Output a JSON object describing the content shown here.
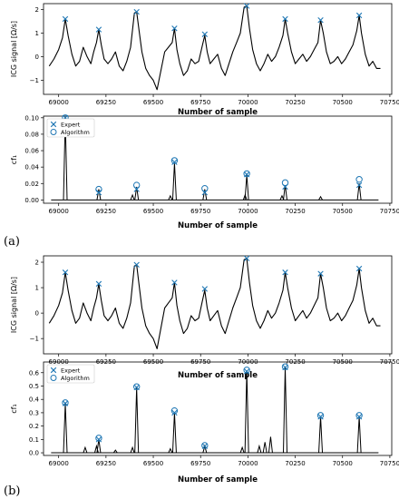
{
  "panel_labels": [
    "(a)",
    "(b)"
  ],
  "colors": {
    "signal": "#000000",
    "marker": "#1f77b4"
  },
  "chart_data": [
    {
      "id": "a_top",
      "type": "line",
      "title": "",
      "xlabel": "Number of sample",
      "ylabel": "ICG signal [Ω/s]",
      "xlim": [
        68920,
        70760
      ],
      "ylim": [
        -1.6,
        2.25
      ],
      "xticks": [
        69000,
        69250,
        69500,
        69750,
        70000,
        70250,
        70500,
        70750
      ],
      "xtick_labels": [
        "69000",
        "69250",
        "69500",
        "69750",
        "70000",
        "70250",
        "70500",
        "70750"
      ],
      "yticks": [
        -1,
        0,
        1,
        2
      ],
      "ytick_labels": [
        "−1",
        "0",
        "1",
        "2"
      ],
      "signal": {
        "x": [
          68950,
          68975,
          69000,
          69020,
          69035,
          69050,
          69070,
          69090,
          69110,
          69130,
          69150,
          69170,
          69185,
          69200,
          69212,
          69225,
          69240,
          69260,
          69280,
          69300,
          69320,
          69340,
          69360,
          69380,
          69400,
          69412,
          69425,
          69440,
          69460,
          69480,
          69500,
          69520,
          69540,
          69560,
          69580,
          69600,
          69612,
          69625,
          69640,
          69660,
          69680,
          69700,
          69720,
          69740,
          69760,
          69772,
          69785,
          69800,
          69820,
          69840,
          69860,
          69880,
          69900,
          69920,
          69940,
          69960,
          69980,
          69994,
          70008,
          70025,
          70045,
          70065,
          70085,
          70105,
          70125,
          70145,
          70165,
          70185,
          70197,
          70210,
          70230,
          70250,
          70270,
          70290,
          70310,
          70330,
          70350,
          70370,
          70384,
          70398,
          70415,
          70435,
          70455,
          70475,
          70495,
          70515,
          70535,
          70555,
          70575,
          70588,
          70600,
          70620,
          70640,
          70660,
          70680,
          70700
        ],
        "y": [
          -0.4,
          -0.1,
          0.3,
          0.8,
          1.6,
          0.9,
          0.1,
          -0.4,
          -0.2,
          0.4,
          0.0,
          -0.3,
          0.2,
          0.6,
          1.15,
          0.5,
          -0.1,
          -0.3,
          -0.1,
          0.2,
          -0.4,
          -0.6,
          -0.2,
          0.4,
          1.85,
          1.9,
          1.1,
          0.2,
          -0.5,
          -0.8,
          -1.0,
          -1.4,
          -0.6,
          0.2,
          0.4,
          0.6,
          1.2,
          0.3,
          -0.3,
          -0.8,
          -0.6,
          -0.1,
          -0.3,
          -0.2,
          0.5,
          0.9,
          0.2,
          -0.3,
          -0.1,
          0.1,
          -0.5,
          -0.8,
          -0.3,
          0.2,
          0.6,
          1.0,
          2.1,
          2.15,
          1.2,
          0.3,
          -0.3,
          -0.6,
          -0.3,
          0.1,
          -0.2,
          0.0,
          0.4,
          0.9,
          1.6,
          1.0,
          0.2,
          -0.3,
          -0.1,
          0.1,
          -0.2,
          0.0,
          0.3,
          0.6,
          1.55,
          1.0,
          0.2,
          -0.3,
          -0.2,
          0.0,
          -0.3,
          -0.1,
          0.2,
          0.5,
          1.1,
          1.75,
          1.0,
          0.1,
          -0.4,
          -0.2,
          -0.5,
          -0.5
        ]
      },
      "expert_markers": [
        {
          "x": 69035,
          "y": 1.6
        },
        {
          "x": 69212,
          "y": 1.15
        },
        {
          "x": 69412,
          "y": 1.9
        },
        {
          "x": 69612,
          "y": 1.2
        },
        {
          "x": 69772,
          "y": 0.95
        },
        {
          "x": 69994,
          "y": 2.15
        },
        {
          "x": 70197,
          "y": 1.6
        },
        {
          "x": 70384,
          "y": 1.55
        },
        {
          "x": 70588,
          "y": 1.75
        }
      ]
    },
    {
      "id": "a_bottom",
      "type": "line",
      "title": "",
      "xlabel": "Number of sample",
      "ylabel": "cf₁",
      "xlim": [
        68920,
        70760
      ],
      "ylim": [
        -0.004,
        0.102
      ],
      "xticks": [
        69000,
        69250,
        69500,
        69750,
        70000,
        70250,
        70500,
        70750
      ],
      "xtick_labels": [
        "69000",
        "69250",
        "69500",
        "69750",
        "70000",
        "70250",
        "70500",
        "70750"
      ],
      "yticks": [
        0.0,
        0.02,
        0.04,
        0.06,
        0.08,
        0.1
      ],
      "ytick_labels": [
        "0.00",
        "0.02",
        "0.04",
        "0.06",
        "0.08",
        "0.10"
      ],
      "legend": {
        "placement": "top-left",
        "entries": [
          "Expert",
          "Algorithm"
        ]
      },
      "spikes": [
        {
          "x": 69035,
          "h": 0.1
        },
        {
          "x": 69212,
          "h": 0.013
        },
        {
          "x": 69390,
          "h": 0.006
        },
        {
          "x": 69412,
          "h": 0.016
        },
        {
          "x": 69612,
          "h": 0.045
        },
        {
          "x": 69590,
          "h": 0.005
        },
        {
          "x": 69772,
          "h": 0.013
        },
        {
          "x": 69994,
          "h": 0.03
        },
        {
          "x": 69985,
          "h": 0.006
        },
        {
          "x": 70197,
          "h": 0.018
        },
        {
          "x": 70180,
          "h": 0.005
        },
        {
          "x": 70384,
          "h": 0.004
        },
        {
          "x": 70588,
          "h": 0.02
        }
      ],
      "expert_markers": [
        {
          "x": 69035,
          "y": 0.1
        },
        {
          "x": 69212,
          "y": 0.009
        },
        {
          "x": 69412,
          "y": 0.013
        },
        {
          "x": 69612,
          "y": 0.046
        },
        {
          "x": 69772,
          "y": 0.009
        },
        {
          "x": 69994,
          "y": 0.031
        },
        {
          "x": 70197,
          "y": 0.016
        },
        {
          "x": 70588,
          "y": 0.018
        }
      ],
      "algorithm_markers": [
        {
          "x": 69035,
          "y": 0.1
        },
        {
          "x": 69212,
          "y": 0.013
        },
        {
          "x": 69412,
          "y": 0.018
        },
        {
          "x": 69612,
          "y": 0.048
        },
        {
          "x": 69772,
          "y": 0.014
        },
        {
          "x": 69994,
          "y": 0.032
        },
        {
          "x": 70197,
          "y": 0.021
        },
        {
          "x": 70588,
          "y": 0.025
        }
      ]
    },
    {
      "id": "b_top",
      "type": "line",
      "title": "",
      "xlabel": "Number of sample",
      "ylabel": "ICG signal [Ω/s]",
      "xlim": [
        68920,
        70760
      ],
      "ylim": [
        -1.6,
        2.25
      ],
      "xticks": [
        69000,
        69250,
        69500,
        69750,
        70000,
        70250,
        70500,
        70750
      ],
      "xtick_labels": [
        "69000",
        "69250",
        "69500",
        "69750",
        "70000",
        "70250",
        "70500",
        "70750"
      ],
      "yticks": [
        -1,
        0,
        1,
        2
      ],
      "ytick_labels": [
        "−1",
        "0",
        "1",
        "2"
      ],
      "signal": {
        "x": [
          68950,
          68975,
          69000,
          69020,
          69035,
          69050,
          69070,
          69090,
          69110,
          69130,
          69150,
          69170,
          69185,
          69200,
          69212,
          69225,
          69240,
          69260,
          69280,
          69300,
          69320,
          69340,
          69360,
          69380,
          69400,
          69412,
          69425,
          69440,
          69460,
          69480,
          69500,
          69520,
          69540,
          69560,
          69580,
          69600,
          69612,
          69625,
          69640,
          69660,
          69680,
          69700,
          69720,
          69740,
          69760,
          69772,
          69785,
          69800,
          69820,
          69840,
          69860,
          69880,
          69900,
          69920,
          69940,
          69960,
          69980,
          69994,
          70008,
          70025,
          70045,
          70065,
          70085,
          70105,
          70125,
          70145,
          70165,
          70185,
          70197,
          70210,
          70230,
          70250,
          70270,
          70290,
          70310,
          70330,
          70350,
          70370,
          70384,
          70398,
          70415,
          70435,
          70455,
          70475,
          70495,
          70515,
          70535,
          70555,
          70575,
          70588,
          70600,
          70620,
          70640,
          70660,
          70680,
          70700
        ],
        "y": [
          -0.4,
          -0.1,
          0.3,
          0.8,
          1.6,
          0.9,
          0.1,
          -0.4,
          -0.2,
          0.4,
          0.0,
          -0.3,
          0.2,
          0.6,
          1.15,
          0.5,
          -0.1,
          -0.3,
          -0.1,
          0.2,
          -0.4,
          -0.6,
          -0.2,
          0.4,
          1.85,
          1.9,
          1.1,
          0.2,
          -0.5,
          -0.8,
          -1.0,
          -1.4,
          -0.6,
          0.2,
          0.4,
          0.6,
          1.2,
          0.3,
          -0.3,
          -0.8,
          -0.6,
          -0.1,
          -0.3,
          -0.2,
          0.5,
          0.9,
          0.2,
          -0.3,
          -0.1,
          0.1,
          -0.5,
          -0.8,
          -0.3,
          0.2,
          0.6,
          1.0,
          2.1,
          2.15,
          1.2,
          0.3,
          -0.3,
          -0.6,
          -0.3,
          0.1,
          -0.2,
          0.0,
          0.4,
          0.9,
          1.6,
          1.0,
          0.2,
          -0.3,
          -0.1,
          0.1,
          -0.2,
          0.0,
          0.3,
          0.6,
          1.55,
          1.0,
          0.2,
          -0.3,
          -0.2,
          0.0,
          -0.3,
          -0.1,
          0.2,
          0.5,
          1.1,
          1.75,
          1.0,
          0.1,
          -0.4,
          -0.2,
          -0.5,
          -0.5
        ]
      },
      "expert_markers": [
        {
          "x": 69035,
          "y": 1.6
        },
        {
          "x": 69212,
          "y": 1.15
        },
        {
          "x": 69412,
          "y": 1.9
        },
        {
          "x": 69612,
          "y": 1.2
        },
        {
          "x": 69772,
          "y": 0.95
        },
        {
          "x": 69994,
          "y": 2.15
        },
        {
          "x": 70197,
          "y": 1.6
        },
        {
          "x": 70384,
          "y": 1.55
        },
        {
          "x": 70588,
          "y": 1.75
        }
      ]
    },
    {
      "id": "b_bottom",
      "type": "line",
      "title": "",
      "xlabel": "Number of sample",
      "ylabel": "cf₁",
      "xlim": [
        68920,
        70760
      ],
      "ylim": [
        -0.02,
        0.68
      ],
      "xticks": [
        69000,
        69250,
        69500,
        69750,
        70000,
        70250,
        70500,
        70750
      ],
      "xtick_labels": [
        "69000",
        "69250",
        "69500",
        "69750",
        "70000",
        "70250",
        "70500",
        "70750"
      ],
      "yticks": [
        0.0,
        0.1,
        0.2,
        0.3,
        0.4,
        0.5,
        0.6
      ],
      "ytick_labels": [
        "0.0",
        "0.1",
        "0.2",
        "0.3",
        "0.4",
        "0.5",
        "0.6"
      ],
      "legend": {
        "placement": "top-left",
        "entries": [
          "Expert",
          "Algorithm"
        ]
      },
      "spikes": [
        {
          "x": 69035,
          "h": 0.37
        },
        {
          "x": 69140,
          "h": 0.04
        },
        {
          "x": 69200,
          "h": 0.05
        },
        {
          "x": 69212,
          "h": 0.1
        },
        {
          "x": 69300,
          "h": 0.02
        },
        {
          "x": 69390,
          "h": 0.04
        },
        {
          "x": 69412,
          "h": 0.49
        },
        {
          "x": 69612,
          "h": 0.3
        },
        {
          "x": 69590,
          "h": 0.03
        },
        {
          "x": 69772,
          "h": 0.05
        },
        {
          "x": 69994,
          "h": 0.61
        },
        {
          "x": 69970,
          "h": 0.04
        },
        {
          "x": 70090,
          "h": 0.08
        },
        {
          "x": 70120,
          "h": 0.12
        },
        {
          "x": 70060,
          "h": 0.05
        },
        {
          "x": 70197,
          "h": 0.64
        },
        {
          "x": 70384,
          "h": 0.27
        },
        {
          "x": 70588,
          "h": 0.27
        }
      ],
      "expert_markers": [
        {
          "x": 69035,
          "y": 0.37
        },
        {
          "x": 69212,
          "y": 0.1
        },
        {
          "x": 69412,
          "y": 0.49
        },
        {
          "x": 69612,
          "y": 0.3
        },
        {
          "x": 69772,
          "y": 0.05
        },
        {
          "x": 69994,
          "y": 0.61
        },
        {
          "x": 70197,
          "y": 0.64
        },
        {
          "x": 70384,
          "y": 0.27
        },
        {
          "x": 70588,
          "y": 0.27
        }
      ],
      "algorithm_markers": [
        {
          "x": 69035,
          "y": 0.375
        },
        {
          "x": 69212,
          "y": 0.11
        },
        {
          "x": 69412,
          "y": 0.495
        },
        {
          "x": 69612,
          "y": 0.315
        },
        {
          "x": 69772,
          "y": 0.055
        },
        {
          "x": 69994,
          "y": 0.62
        },
        {
          "x": 70197,
          "y": 0.645
        },
        {
          "x": 70384,
          "y": 0.28
        },
        {
          "x": 70588,
          "y": 0.28
        }
      ]
    }
  ]
}
